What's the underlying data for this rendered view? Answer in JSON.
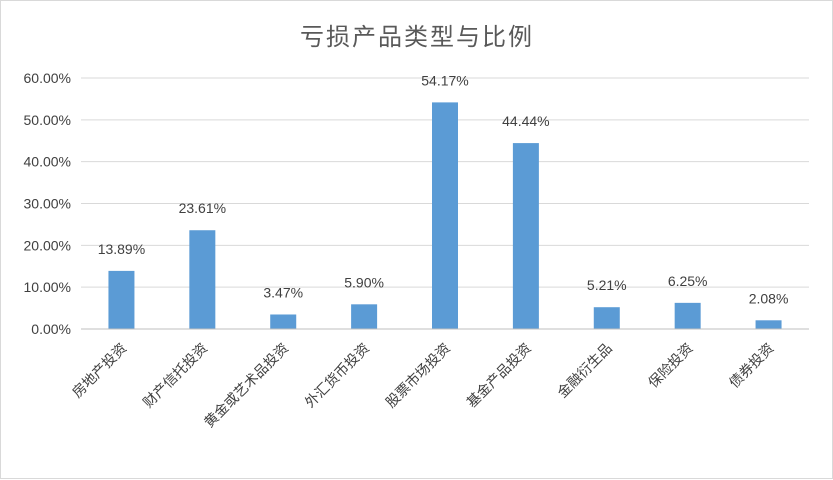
{
  "chart_data": {
    "type": "bar",
    "title": "亏损产品类型与比例",
    "xlabel": "",
    "ylabel": "",
    "ylim": [
      0,
      60
    ],
    "yticks": [
      "0.00%",
      "10.00%",
      "20.00%",
      "30.00%",
      "40.00%",
      "50.00%",
      "60.00%"
    ],
    "categories": [
      "房地产投资",
      "财产信托投资",
      "黄金或艺术品投资",
      "外汇货币投资",
      "股票市场投资",
      "基金产品投资",
      "金融衍生品",
      "保险投资",
      "债券投资"
    ],
    "values": [
      13.89,
      23.61,
      3.47,
      5.9,
      54.17,
      44.44,
      5.21,
      6.25,
      2.08
    ],
    "data_labels": [
      "13.89%",
      "23.61%",
      "3.47%",
      "5.90%",
      "54.17%",
      "44.44%",
      "5.21%",
      "6.25%",
      "2.08%"
    ],
    "grid": true,
    "legend": "none",
    "bar_color": "#5b9bd5"
  }
}
